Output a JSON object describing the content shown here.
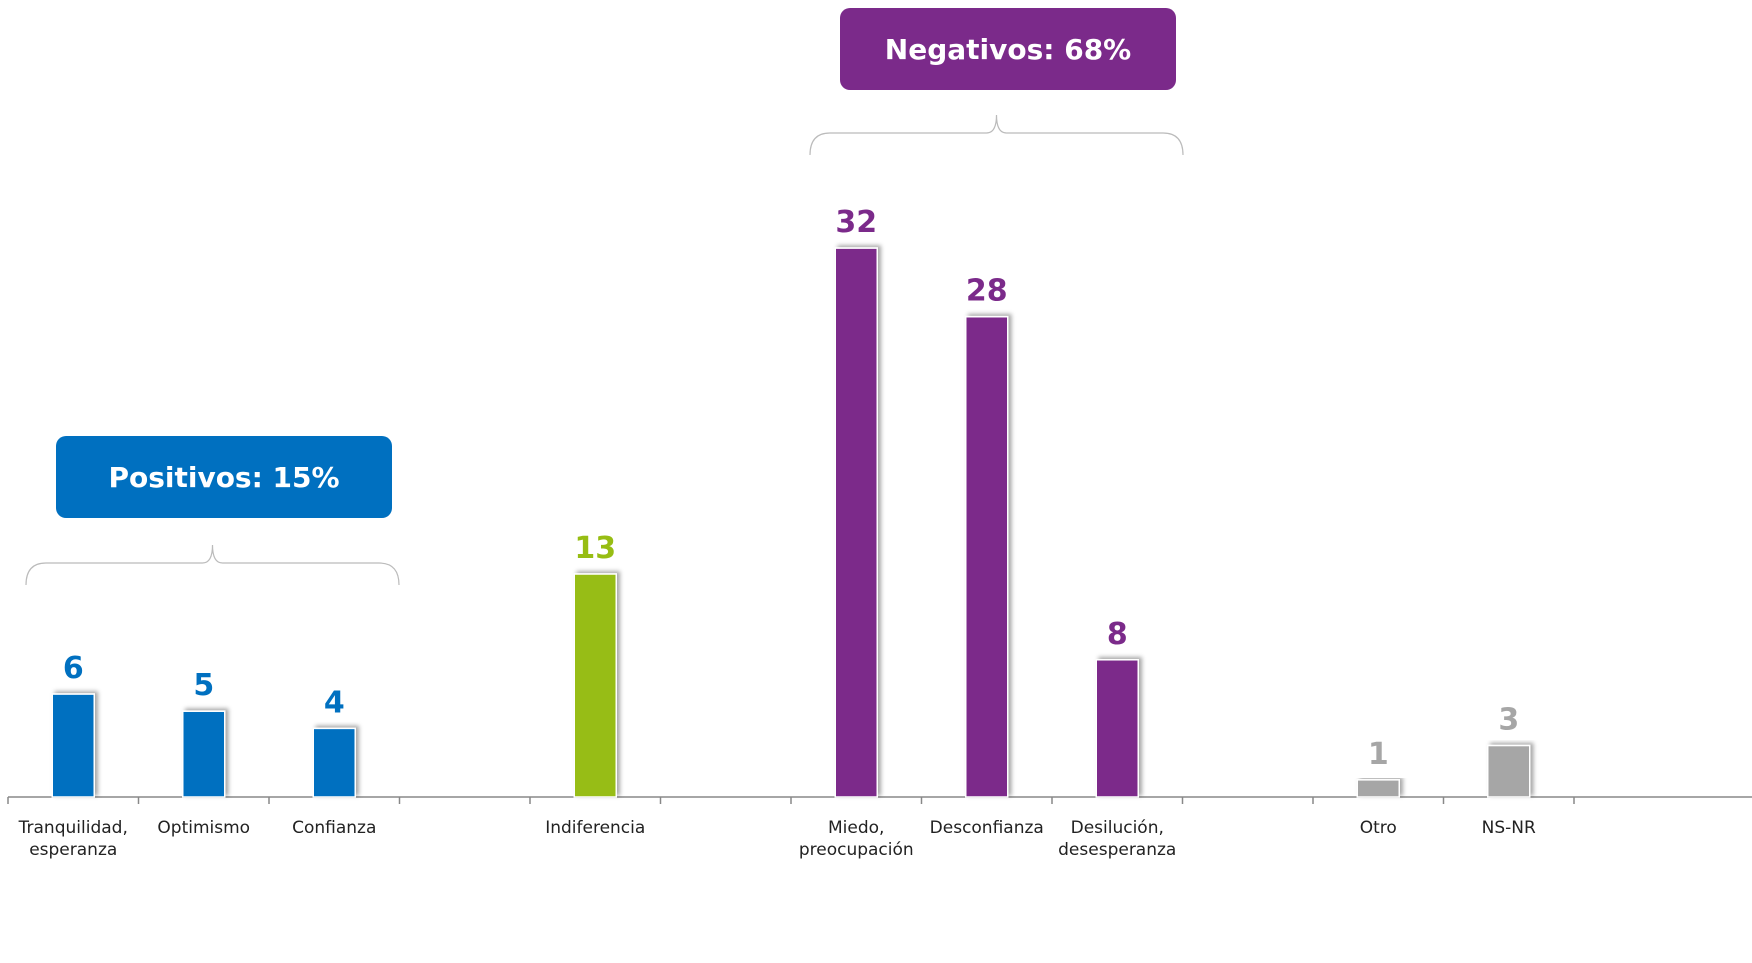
{
  "chart_data": {
    "type": "bar",
    "categories": [
      "Tranquilidad,\nesperanza",
      "Optimismo",
      "Confianza",
      null,
      "Indiferencia",
      null,
      "Miedo,\npreocupación",
      "Desconfianza",
      "Desilución,\ndesesperanza",
      null,
      "Otro",
      "NS-NR"
    ],
    "values": [
      6,
      5,
      4,
      null,
      13,
      null,
      32,
      28,
      8,
      null,
      1,
      3
    ],
    "colors": [
      "#0070c0",
      "#0070c0",
      "#0070c0",
      null,
      "#97bd13",
      null,
      "#7b2a8a",
      "#7b2a8a",
      "#7b2a8a",
      null,
      "#a6a6a6",
      "#a6a6a6"
    ],
    "ylim": [
      0,
      46
    ],
    "annotations": [
      {
        "text": "Positivos: 15%",
        "color": "#0070c0"
      },
      {
        "text": "Negativos: 68%",
        "color": "#7b2a8a"
      }
    ]
  }
}
